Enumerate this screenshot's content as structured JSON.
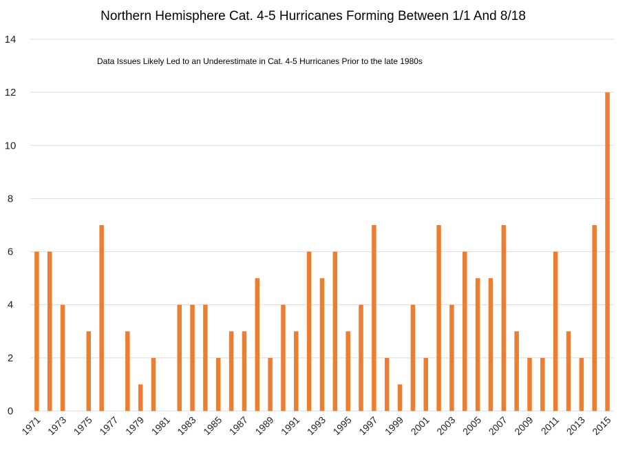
{
  "chart_data": {
    "type": "bar",
    "title": "Northern Hemisphere  Cat. 4-5 Hurricanes  Forming Between  1/1 And 8/18",
    "annotation": "Data Issues Likely Led to an Underestimate in Cat. 4-5 Hurricanes Prior to the late 1980s",
    "xlabel": "",
    "ylabel": "",
    "categories": [
      "1971",
      "1972",
      "1973",
      "1974",
      "1975",
      "1976",
      "1977",
      "1978",
      "1979",
      "1980",
      "1981",
      "1982",
      "1983",
      "1984",
      "1985",
      "1986",
      "1987",
      "1988",
      "1989",
      "1990",
      "1991",
      "1992",
      "1993",
      "1994",
      "1995",
      "1996",
      "1997",
      "1998",
      "1999",
      "2000",
      "2001",
      "2002",
      "2003",
      "2004",
      "2005",
      "2006",
      "2007",
      "2008",
      "2009",
      "2010",
      "2011",
      "2012",
      "2013",
      "2014",
      "2015"
    ],
    "x_tick_labels": [
      "1971",
      "1973",
      "1975",
      "1977",
      "1979",
      "1981",
      "1983",
      "1985",
      "1987",
      "1989",
      "1991",
      "1993",
      "1995",
      "1997",
      "1999",
      "2001",
      "2003",
      "2005",
      "2007",
      "2009",
      "2011",
      "2013",
      "2015"
    ],
    "values": [
      6,
      6,
      4,
      0,
      3,
      7,
      0,
      3,
      1,
      2,
      0,
      4,
      4,
      4,
      2,
      3,
      3,
      5,
      2,
      4,
      3,
      6,
      5,
      6,
      3,
      4,
      7,
      2,
      1,
      4,
      2,
      7,
      4,
      6,
      5,
      5,
      7,
      3,
      2,
      2,
      6,
      3,
      2,
      7,
      12
    ],
    "ylim": [
      0,
      14
    ],
    "y_ticks": [
      0,
      2,
      4,
      6,
      8,
      10,
      12,
      14
    ],
    "grid": true,
    "bar_color": "#ED7D31"
  }
}
